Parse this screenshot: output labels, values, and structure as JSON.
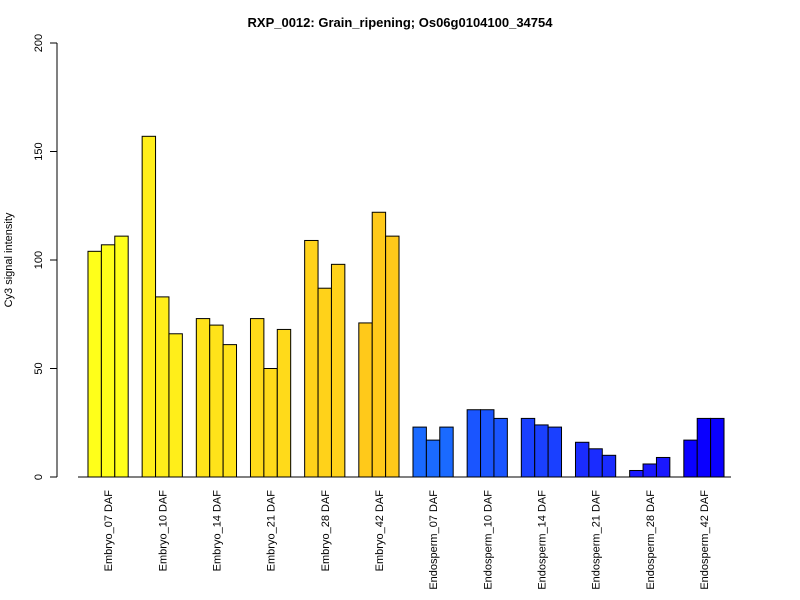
{
  "chart_data": {
    "type": "bar",
    "title": "RXP_0012: Grain_ripening; Os06g0104100_34754",
    "xlabel": "",
    "ylabel": "Cy3 signal intensity",
    "ylim": [
      0,
      200
    ],
    "yticks": [
      "0",
      "50",
      "100",
      "150",
      "200"
    ],
    "grid": false,
    "legend": "none",
    "replicates_per_group": 3,
    "categories": [
      "Embryo_07 DAF",
      "Embryo_10 DAF",
      "Embryo_14 DAF",
      "Embryo_21 DAF",
      "Embryo_28 DAF",
      "Embryo_42 DAF",
      "Endosperm_07 DAF",
      "Endosperm_10 DAF",
      "Endosperm_14 DAF",
      "Endosperm_21 DAF",
      "Endosperm_28 DAF",
      "Endosperm_42 DAF"
    ],
    "values": [
      [
        104,
        107,
        111
      ],
      [
        157,
        83,
        66
      ],
      [
        73,
        70,
        61
      ],
      [
        73,
        50,
        68
      ],
      [
        109,
        87,
        98
      ],
      [
        71,
        122,
        111
      ],
      [
        23,
        17,
        23
      ],
      [
        31,
        31,
        27
      ],
      [
        27,
        24,
        23
      ],
      [
        16,
        13,
        10
      ],
      [
        3,
        6,
        9
      ],
      [
        17,
        27,
        27
      ]
    ],
    "colors": [
      "#ffff1a",
      "#ffee1a",
      "#ffe31a",
      "#ffda1a",
      "#ffd21a",
      "#ffc91a",
      "#1a6aff",
      "#1a55ff",
      "#1a40ff",
      "#1a2cff",
      "#1a18ff",
      "#0a00ff"
    ]
  }
}
